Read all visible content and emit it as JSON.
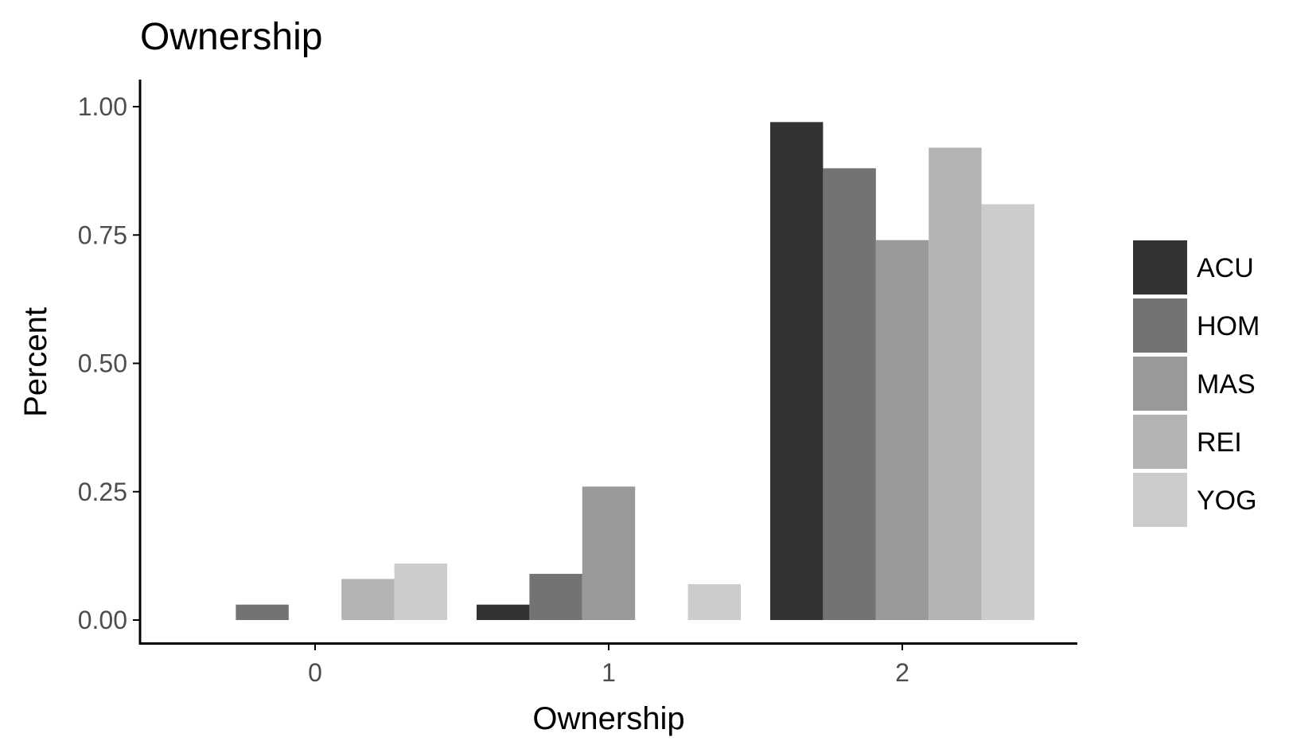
{
  "chart_data": {
    "type": "bar",
    "title": "Ownership",
    "xlabel": "Ownership",
    "ylabel": "Percent",
    "categories": [
      "0",
      "1",
      "2"
    ],
    "ylim": [
      0,
      1.0
    ],
    "yticks": [
      "0.00",
      "0.25",
      "0.50",
      "0.75",
      "1.00"
    ],
    "grid": false,
    "legend_position": "right",
    "series": [
      {
        "name": "ACU",
        "color": "#333333",
        "values": [
          0.0,
          0.03,
          0.97
        ]
      },
      {
        "name": "HOM",
        "color": "#737373",
        "values": [
          0.03,
          0.09,
          0.88
        ]
      },
      {
        "name": "MAS",
        "color": "#999999",
        "values": [
          0.0,
          0.26,
          0.74
        ]
      },
      {
        "name": "REI",
        "color": "#b3b3b3",
        "values": [
          0.08,
          0.0,
          0.92
        ]
      },
      {
        "name": "YOG",
        "color": "#cccccc",
        "values": [
          0.11,
          0.07,
          0.81
        ]
      }
    ]
  }
}
